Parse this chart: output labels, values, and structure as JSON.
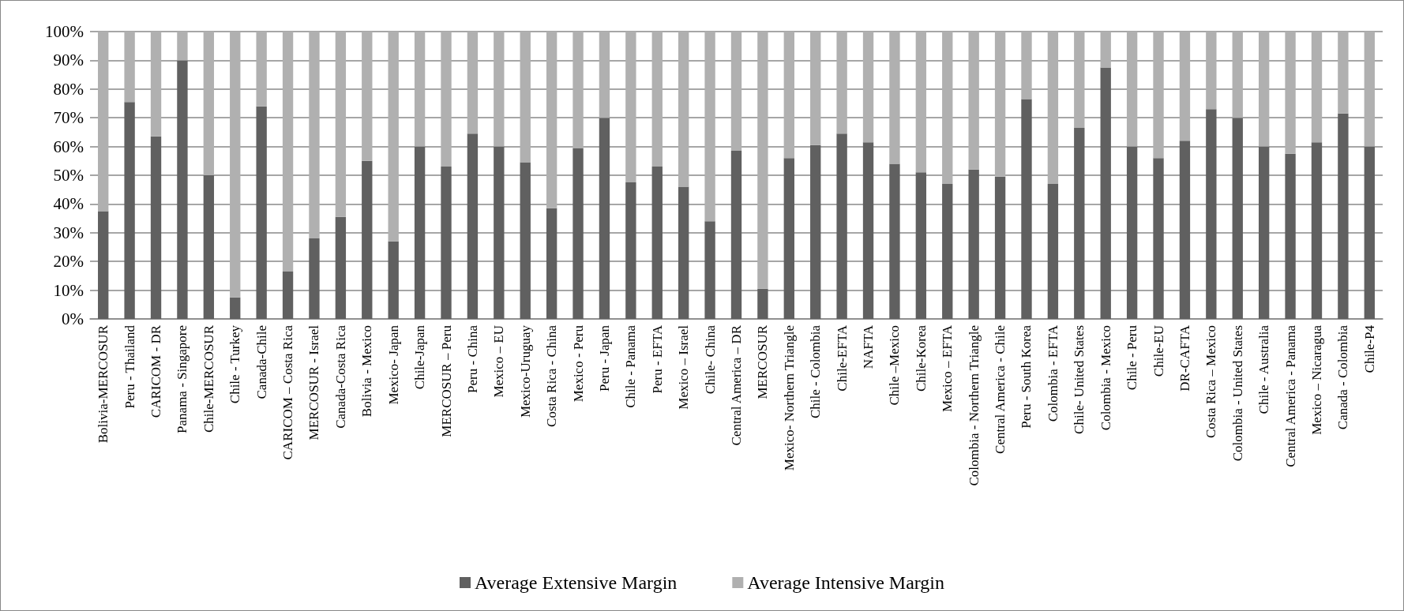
{
  "chart_data": {
    "type": "bar",
    "stacked": true,
    "categories": [
      "Bolivia-MERCOSUR",
      "Peru - Thailand",
      "CARICOM - DR",
      "Panama - Singapore",
      "Chile-MERCOSUR",
      "Chile - Turkey",
      "Canada-Chile",
      "CARICOM – Costa Rica",
      "MERCOSUR - Israel",
      "Canada-Costa Rica",
      "Bolivia - Mexico",
      "Mexico- Japan",
      "Chile-Japan",
      "MERCOSUR – Peru",
      "Peru - China",
      "Mexico – EU",
      "Mexico-Uruguay",
      "Costa Rica - China",
      "Mexico - Peru",
      "Peru - Japan",
      "Chile - Panama",
      "Peru - EFTA",
      "Mexico – Israel",
      "Chile- China",
      "Central America – DR",
      "MERCOSUR",
      "Mexico- Northern Triangle",
      "Chile - Colombia",
      "Chile-EFTA",
      "NAFTA",
      "Chile –Mexico",
      "Chile-Korea",
      "Mexico – EFTA",
      "Colombia - Northern Triangle",
      "Central America - Chile",
      "Peru - South Korea",
      "Colombia - EFTA",
      "Chile- United States",
      "Colombia - Mexico",
      "Chile - Peru",
      "Chile-EU",
      "DR-CAFTA",
      "Costa Rica – Mexico",
      "Colombia - United States",
      "Chile - Australia",
      "Central America - Panama",
      "Mexico – Nicaragua",
      "Canada - Colombia",
      "Chile-P4"
    ],
    "series": [
      {
        "name": "Average Extensive Margin",
        "color": "#606060",
        "values": [
          37.5,
          75.5,
          63.5,
          90,
          50,
          7.5,
          74,
          16.5,
          28,
          35.5,
          55,
          27,
          60,
          53,
          64.5,
          60,
          54.5,
          38.5,
          59.5,
          70,
          47.5,
          53,
          46,
          34,
          58.5,
          10.5,
          56,
          60.5,
          64.5,
          61.5,
          54,
          51,
          47,
          52,
          49.5,
          76.5,
          47,
          66.5,
          87.5,
          60,
          56,
          62,
          73,
          70,
          60,
          57.5,
          61.5,
          71.5,
          60
        ]
      },
      {
        "name": "Average Intensive Margin",
        "color": "#b0b0b0",
        "values": [
          62.5,
          24.5,
          36.5,
          10,
          50,
          92.5,
          26,
          83.5,
          72,
          64.5,
          45,
          73,
          40,
          47,
          35.5,
          40,
          45.5,
          61.5,
          40.5,
          30,
          52.5,
          47,
          54,
          66,
          41.5,
          89.5,
          44,
          39.5,
          35.5,
          38.5,
          46,
          49,
          53,
          48,
          50.5,
          23.5,
          53,
          33.5,
          12.5,
          40,
          44,
          38,
          27,
          30,
          40,
          42.5,
          38.5,
          28.5,
          40
        ]
      }
    ],
    "ylim": [
      0,
      100
    ],
    "yticks": [
      {
        "value": 0,
        "label": "0%"
      },
      {
        "value": 10,
        "label": "10%"
      },
      {
        "value": 20,
        "label": "20%"
      },
      {
        "value": 30,
        "label": "30%"
      },
      {
        "value": 40,
        "label": "40%"
      },
      {
        "value": 50,
        "label": "50%"
      },
      {
        "value": 60,
        "label": "60%"
      },
      {
        "value": 70,
        "label": "70%"
      },
      {
        "value": 80,
        "label": "80%"
      },
      {
        "value": 90,
        "label": "90%"
      },
      {
        "value": 100,
        "label": "100%"
      }
    ],
    "grid": "y",
    "legend": "bottom"
  }
}
